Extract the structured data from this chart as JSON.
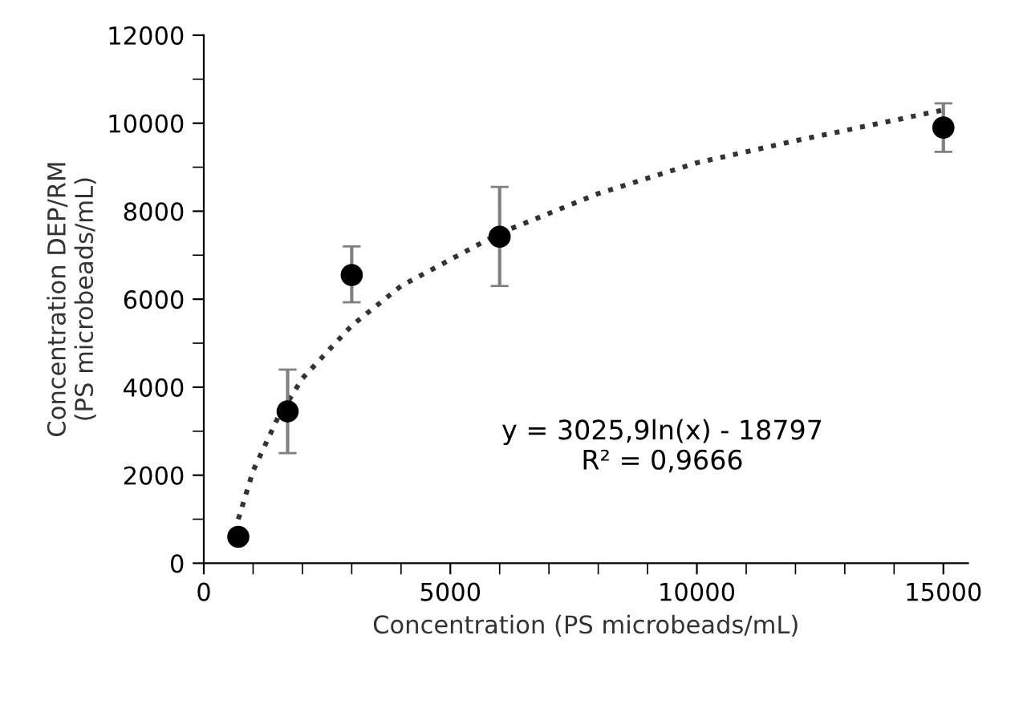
{
  "chart_data": {
    "type": "scatter",
    "xlabel": "Concentration (PS microbeads/mL)",
    "ylabel": "Concentration DEP/RM\n(PS microbeads/mL)",
    "xlim": [
      0,
      15500
    ],
    "xticks": [
      0,
      5000,
      10000,
      15000
    ],
    "ylim": [
      0,
      12000
    ],
    "yticks": [
      0,
      2000,
      4000,
      6000,
      8000,
      10000,
      12000
    ],
    "grid": false,
    "series": [
      {
        "color": "#000000",
        "marker": "circle",
        "x": [
          700,
          1700,
          3000,
          6000,
          15000
        ],
        "values": [
          600,
          3450,
          6550,
          7420,
          9900
        ],
        "errors": [
          null,
          [
            2500,
            4400
          ],
          [
            5930,
            7200
          ],
          [
            6300,
            8550
          ],
          [
            9350,
            10450
          ]
        ]
      },
      {
        "type": "line",
        "color": "#333333",
        "marker": "none",
        "line_style": "dotted",
        "x": [
          700,
          1000,
          1500,
          2000,
          3000,
          4000,
          6000,
          8000,
          10000,
          12000,
          15000
        ],
        "values": [
          1000,
          2100,
          3300,
          4200,
          5400,
          6300,
          7500,
          8400,
          9100,
          9600,
          10300
        ]
      }
    ],
    "annotations": [
      "y = 3025,9ln(x) - 18797\nR² = 0,9666"
    ]
  }
}
